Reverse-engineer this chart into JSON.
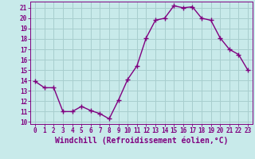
{
  "x": [
    0,
    1,
    2,
    3,
    4,
    5,
    6,
    7,
    8,
    9,
    10,
    11,
    12,
    13,
    14,
    15,
    16,
    17,
    18,
    19,
    20,
    21,
    22,
    23
  ],
  "y": [
    13.9,
    13.3,
    13.3,
    11.0,
    11.0,
    11.5,
    11.1,
    10.8,
    10.3,
    12.1,
    14.1,
    15.4,
    18.1,
    19.8,
    20.0,
    21.2,
    21.0,
    21.1,
    20.0,
    19.8,
    18.1,
    17.0,
    16.5,
    15.0
  ],
  "line_color": "#800080",
  "marker": "+",
  "marker_size": 4,
  "bg_color": "#c8eaea",
  "grid_color": "#a8cece",
  "xlabel": "Windchill (Refroidissement éolien,°C)",
  "xlim": [
    -0.5,
    23.5
  ],
  "ylim": [
    9.8,
    21.6
  ],
  "yticks": [
    10,
    11,
    12,
    13,
    14,
    15,
    16,
    17,
    18,
    19,
    20,
    21
  ],
  "xticks": [
    0,
    1,
    2,
    3,
    4,
    5,
    6,
    7,
    8,
    9,
    10,
    11,
    12,
    13,
    14,
    15,
    16,
    17,
    18,
    19,
    20,
    21,
    22,
    23
  ],
  "tick_color": "#800080",
  "tick_fontsize": 5.5,
  "xlabel_fontsize": 7.0,
  "line_width": 1.0,
  "marker_color": "#800080"
}
